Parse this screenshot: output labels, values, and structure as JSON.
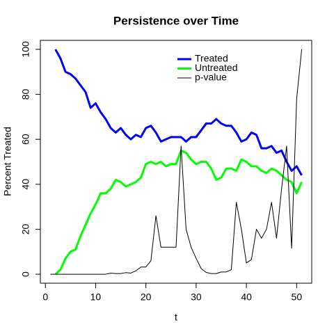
{
  "chart_data": {
    "type": "line",
    "title": "Persistence over Time",
    "x_label": "t",
    "y_label": "Percent Treated",
    "x": [
      1,
      2,
      3,
      4,
      5,
      6,
      7,
      8,
      9,
      10,
      11,
      12,
      13,
      14,
      15,
      16,
      17,
      18,
      19,
      20,
      21,
      22,
      23,
      24,
      25,
      26,
      27,
      28,
      29,
      30,
      31,
      32,
      33,
      34,
      35,
      36,
      37,
      38,
      39,
      40,
      41,
      42,
      43,
      44,
      45,
      46,
      47,
      48,
      49,
      50,
      51
    ],
    "xlim": [
      -1,
      53
    ],
    "ylim": [
      -4,
      104
    ],
    "xticks": [
      0,
      10,
      20,
      30,
      40,
      50
    ],
    "yticks": [
      0,
      20,
      40,
      60,
      80,
      100
    ],
    "legend_position": "top",
    "series": [
      {
        "name": "Treated",
        "color": "#0000ff",
        "line_width": 3,
        "values": [
          null,
          100,
          96,
          90,
          89,
          87,
          84,
          81,
          74,
          76,
          72,
          69,
          65,
          63,
          65,
          62,
          60,
          62,
          61,
          65,
          66,
          63,
          59,
          60,
          61,
          61,
          61,
          59,
          61,
          61,
          64,
          67,
          67,
          69,
          67,
          66,
          66,
          63,
          59,
          60,
          63,
          62,
          56,
          56,
          57,
          54,
          55,
          50,
          46,
          48,
          44
        ]
      },
      {
        "name": "Untreated",
        "color": "#00ff00",
        "line_width": 3,
        "values": [
          null,
          0,
          2,
          7,
          10,
          11,
          17,
          22,
          27,
          31,
          36,
          36,
          38,
          42,
          41,
          39,
          40,
          41,
          43,
          49,
          50,
          49,
          50,
          48,
          49,
          49,
          55,
          54,
          51,
          49,
          50,
          50,
          47,
          42,
          43,
          47,
          47,
          46,
          51,
          50,
          48,
          48,
          46,
          45,
          47,
          46,
          44,
          42,
          41,
          36,
          41
        ]
      },
      {
        "name": "p-value",
        "color": "#000000",
        "line_width": 1,
        "values": [
          0,
          0,
          0,
          0,
          0,
          0,
          0,
          0,
          0,
          0,
          0,
          0,
          0.5,
          0.3,
          0.3,
          0.7,
          0.5,
          1.5,
          3.2,
          3.2,
          6,
          26,
          12,
          12,
          12,
          12,
          57,
          20,
          12,
          7,
          2.5,
          0.8,
          0.3,
          0.3,
          1,
          1,
          2,
          32,
          20,
          5,
          6.5,
          20,
          16,
          20,
          32,
          16,
          38,
          57,
          11.5,
          78,
          100
        ]
      }
    ]
  }
}
